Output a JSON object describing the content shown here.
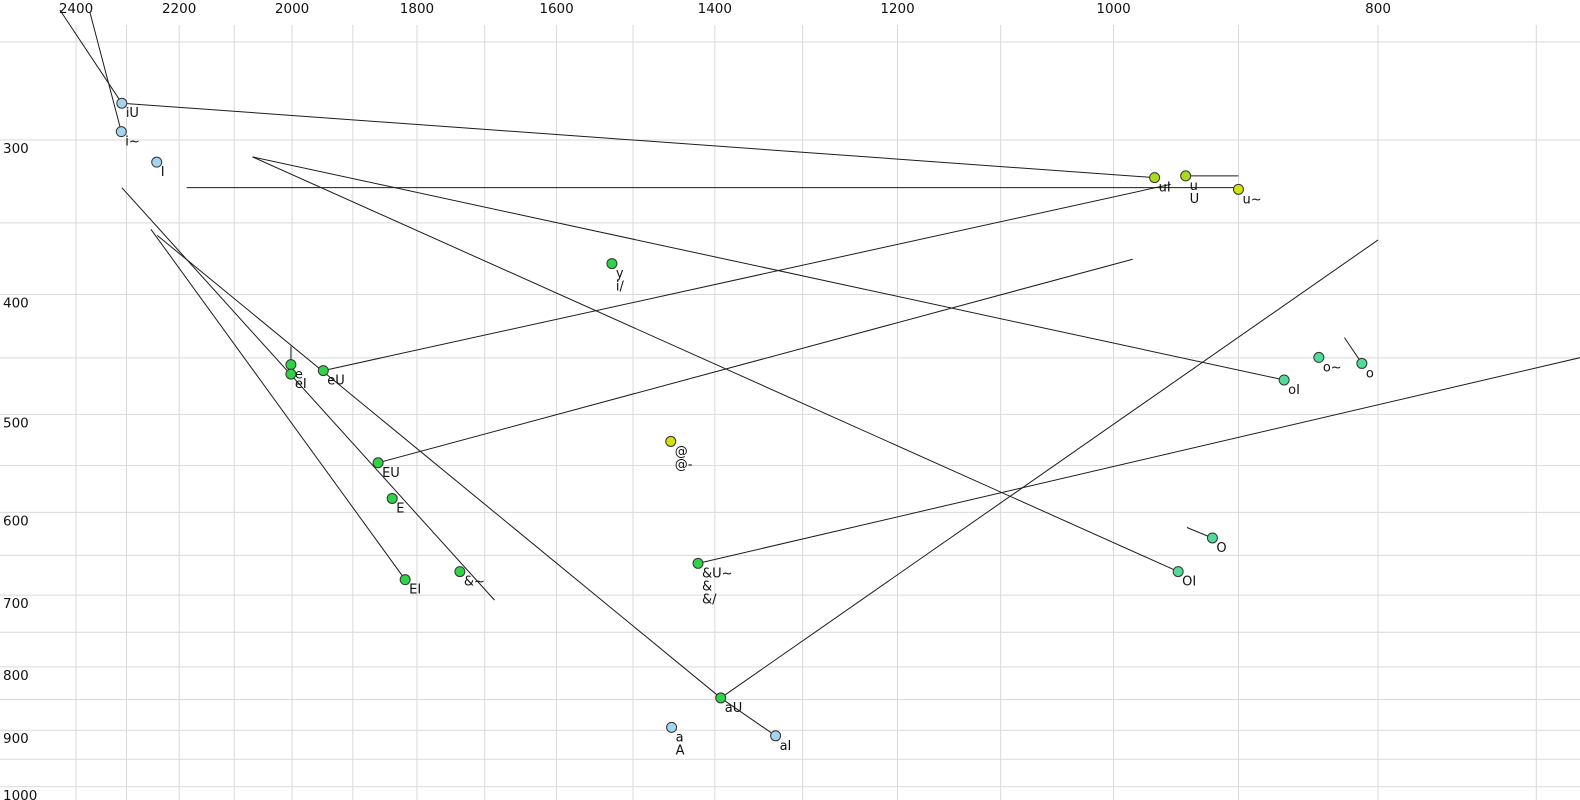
{
  "chart_data": {
    "type": "scatter",
    "description": "Vowel formant plot: F2 (Hz) on reversed log x-axis across top, F1 (Hz) on log y-axis at left; dots mark vowel means, thin lines mark diphthong trajectories",
    "x_axis": {
      "ticks": [
        2400,
        2200,
        2000,
        1800,
        1600,
        1400,
        1200,
        1000,
        800
      ],
      "scale": "log",
      "direction": "reversed-descending-right",
      "gridlines": [
        2400,
        2300,
        2200,
        2100,
        2000,
        1900,
        1800,
        1700,
        1600,
        1500,
        1400,
        1300,
        1200,
        1100,
        1000,
        900,
        800,
        700
      ]
    },
    "y_axis": {
      "ticks": [
        300,
        400,
        500,
        600,
        700,
        800,
        900,
        1000
      ],
      "scale": "log",
      "direction": "increasing-down",
      "gridlines": [
        250,
        300,
        350,
        400,
        450,
        500,
        550,
        600,
        650,
        700,
        750,
        800,
        850,
        900,
        950,
        1000
      ]
    },
    "colors": {
      "blue": "#a3d5ee",
      "green": "#2fd348",
      "mint": "#50dc96",
      "yellowgreen": "#aadc1e",
      "yellow": "#d2e10a",
      "line": "#1c1c1c",
      "grid": "#d9d9d9"
    },
    "points": [
      {
        "id": "iU",
        "f2": 2309,
        "f1": 276,
        "group": "blue",
        "labels": [
          "iU"
        ]
      },
      {
        "id": "i~",
        "f2": 2310,
        "f1": 291,
        "group": "blue",
        "labels": [
          "i~"
        ]
      },
      {
        "id": "I",
        "f2": 2242,
        "f1": 308,
        "group": "blue",
        "labels": [
          "I"
        ]
      },
      {
        "id": "y",
        "f2": 1527,
        "f1": 372,
        "group": "green",
        "labels": [
          "y",
          "i/"
        ]
      },
      {
        "id": "e",
        "f2": 2002,
        "f1": 449,
        "group": "green",
        "labels": [
          "e"
        ]
      },
      {
        "id": "eI",
        "f2": 2002,
        "f1": 457,
        "group": "green",
        "labels": [
          "eI"
        ]
      },
      {
        "id": "eU",
        "f2": 1948,
        "f1": 454,
        "group": "green",
        "labels": [
          "eU"
        ]
      },
      {
        "id": "EU",
        "f2": 1860,
        "f1": 539,
        "group": "green",
        "labels": [
          "EU"
        ]
      },
      {
        "id": "E",
        "f2": 1838,
        "f1": 576,
        "group": "green",
        "labels": [
          "E"
        ]
      },
      {
        "id": "EI",
        "f2": 1818,
        "f1": 670,
        "group": "green",
        "labels": [
          "EI"
        ]
      },
      {
        "id": "&~",
        "f2": 1736,
        "f1": 660,
        "group": "green",
        "labels": [
          "&~"
        ]
      },
      {
        "id": "@",
        "f2": 1453,
        "f1": 518,
        "group": "yellow",
        "labels": [
          "@",
          "@-"
        ]
      },
      {
        "id": "&U~",
        "f2": 1420,
        "f1": 650,
        "group": "green",
        "labels": [
          "&U~",
          "&",
          "&/"
        ]
      },
      {
        "id": "aU",
        "f2": 1393,
        "f1": 835,
        "group": "green",
        "labels": [
          "aU"
        ]
      },
      {
        "id": "a",
        "f2": 1452,
        "f1": 882,
        "group": "blue",
        "labels": [
          "a",
          "A"
        ]
      },
      {
        "id": "aI",
        "f2": 1330,
        "f1": 896,
        "group": "blue",
        "labels": [
          "aI"
        ]
      },
      {
        "id": "uI",
        "f2": 966,
        "f1": 317,
        "group": "yellowgreen",
        "labels": [
          "uI"
        ]
      },
      {
        "id": "u",
        "f2": 941,
        "f1": 316,
        "group": "yellowgreen",
        "labels": [
          "u",
          "U"
        ]
      },
      {
        "id": "u~",
        "f2": 900,
        "f1": 324,
        "group": "yellow",
        "labels": [
          "u~"
        ]
      },
      {
        "id": "o~",
        "f2": 841,
        "f1": 443,
        "group": "mint",
        "labels": [
          "o~"
        ]
      },
      {
        "id": "o",
        "f2": 811,
        "f1": 448,
        "group": "mint",
        "labels": [
          "o"
        ]
      },
      {
        "id": "oI",
        "f2": 866,
        "f1": 462,
        "group": "mint",
        "labels": [
          "oI"
        ]
      },
      {
        "id": "O",
        "f2": 920,
        "f1": 620,
        "group": "mint",
        "labels": [
          "O"
        ]
      },
      {
        "id": "OI",
        "f2": 947,
        "f1": 660,
        "group": "mint",
        "labels": [
          "OI"
        ]
      }
    ],
    "segments": [
      {
        "name": "into-iU",
        "x": [
          2433,
          2309
        ],
        "y": [
          232,
          276
        ]
      },
      {
        "name": "into-i~",
        "x": [
          2372,
          2310
        ],
        "y": [
          233,
          291
        ]
      },
      {
        "name": "iU-to-uI",
        "x": [
          2309,
          966
        ],
        "y": [
          276,
          317
        ]
      },
      {
        "name": "long-to-u~",
        "x": [
          2186,
          900
        ],
        "y": [
          323,
          323
        ]
      },
      {
        "name": "u-stub",
        "x": [
          941,
          900
        ],
        "y": [
          316,
          316
        ]
      },
      {
        "name": "to-oI",
        "x": [
          2068,
          866
        ],
        "y": [
          305,
          462
        ]
      },
      {
        "name": "to-OI",
        "x": [
          2068,
          947
        ],
        "y": [
          305,
          660
        ]
      },
      {
        "name": "eU-up-right",
        "x": [
          1948,
          953
        ],
        "y": [
          454,
          321
        ]
      },
      {
        "name": "EU-up-right",
        "x": [
          1860,
          984
        ],
        "y": [
          539,
          369
        ]
      },
      {
        "name": "through-ae~",
        "x": [
          2309,
          1686
        ],
        "y": [
          323,
          696
        ]
      },
      {
        "name": "to-EI",
        "x": [
          2253,
          1818
        ],
        "y": [
          349,
          670
        ]
      },
      {
        "name": "to-aU",
        "x": [
          2241,
          1393
        ],
        "y": [
          353,
          835
        ]
      },
      {
        "name": "aU-to-aI",
        "x": [
          1393,
          1330
        ],
        "y": [
          835,
          896
        ]
      },
      {
        "name": "aU-up-right",
        "x": [
          1393,
          800
        ],
        "y": [
          835,
          356
        ]
      },
      {
        "name": "aeU~-up-right",
        "x": [
          1420,
          674
        ],
        "y": [
          650,
          443
        ]
      },
      {
        "name": "e-stub",
        "x": [
          2002,
          2002
        ],
        "y": [
          434,
          449
        ]
      },
      {
        "name": "o-stub",
        "x": [
          823,
          811
        ],
        "y": [
          427,
          448
        ]
      },
      {
        "name": "O-stub",
        "x": [
          940,
          920
        ],
        "y": [
          608,
          620
        ]
      }
    ]
  }
}
